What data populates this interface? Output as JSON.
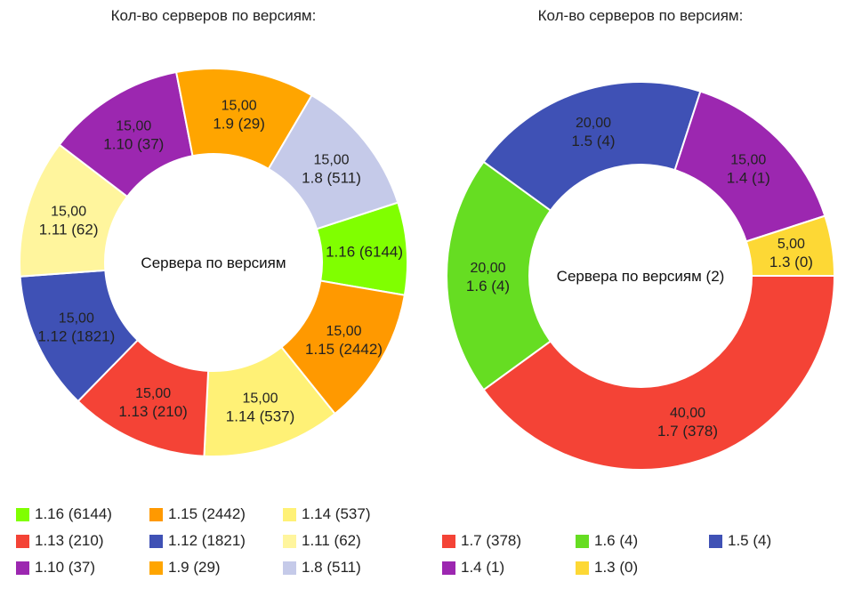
{
  "chart_data": [
    {
      "type": "pie",
      "title": "Кол-во серверов по версиям:",
      "center_label": "Сервера по версиям",
      "slices": [
        {
          "label": "1.16 (6144)",
          "value": 10.0,
          "value_label": "",
          "color": "#80ff00"
        },
        {
          "label": "1.15 (2442)",
          "value": 15.0,
          "value_label": "15,00",
          "color": "#ff9900"
        },
        {
          "label": "1.14 (537)",
          "value": 15.0,
          "value_label": "15,00",
          "color": "#fff176"
        },
        {
          "label": "1.13 (210)",
          "value": 15.0,
          "value_label": "15,00",
          "color": "#f44336"
        },
        {
          "label": "1.12 (1821)",
          "value": 15.0,
          "value_label": "15,00",
          "color": "#3f51b5"
        },
        {
          "label": "1.11 (62)",
          "value": 15.0,
          "value_label": "15,00",
          "color": "#fff59d"
        },
        {
          "label": "1.10 (37)",
          "value": 15.0,
          "value_label": "15,00",
          "color": "#9c27b0"
        },
        {
          "label": "1.9 (29)",
          "value": 15.0,
          "value_label": "15,00",
          "color": "#ffa500"
        },
        {
          "label": "1.8 (511)",
          "value": 15.0,
          "value_label": "15,00",
          "color": "#c5cae9"
        }
      ],
      "legend_placement": "bottom"
    },
    {
      "type": "pie",
      "title": "Кол-во серверов по версиям:",
      "center_label": "Сервера по версиям (2)",
      "slices": [
        {
          "label": "1.7 (378)",
          "value": 40.0,
          "value_label": "40,00",
          "color": "#f44336"
        },
        {
          "label": "1.6 (4)",
          "value": 20.0,
          "value_label": "20,00",
          "color": "#66dd22"
        },
        {
          "label": "1.5 (4)",
          "value": 20.0,
          "value_label": "20,00",
          "color": "#3f51b5"
        },
        {
          "label": "1.4 (1)",
          "value": 15.0,
          "value_label": "15,00",
          "color": "#9c27b0"
        },
        {
          "label": "1.3 (0)",
          "value": 5.0,
          "value_label": "5,00",
          "color": "#fdd835"
        }
      ],
      "legend_placement": "bottom"
    }
  ]
}
